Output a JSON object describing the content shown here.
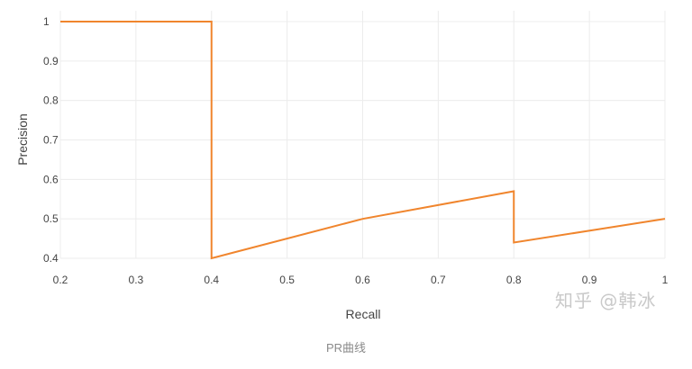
{
  "chart_data": {
    "type": "line",
    "title": "",
    "xlabel": "Recall",
    "ylabel": "Precision",
    "xlim": [
      0.2,
      1.0
    ],
    "ylim": [
      0.4,
      1.0
    ],
    "x_ticks": [
      0.2,
      0.3,
      0.4,
      0.5,
      0.6,
      0.7,
      0.8,
      0.9,
      1.0
    ],
    "x_tick_labels": [
      "0.2",
      "0.3",
      "0.4",
      "0.5",
      "0.6",
      "0.7",
      "0.8",
      "0.9",
      "1"
    ],
    "y_ticks": [
      0.4,
      0.5,
      0.6,
      0.7,
      0.8,
      0.9,
      1.0
    ],
    "y_tick_labels": [
      "0.4",
      "0.5",
      "0.6",
      "0.7",
      "0.8",
      "0.9",
      "1"
    ],
    "grid": true,
    "series": [
      {
        "name": "PR",
        "color": "#f0852d",
        "x": [
          0.2,
          0.4,
          0.4,
          0.6,
          0.8,
          0.8,
          1.0
        ],
        "y": [
          1.0,
          1.0,
          0.4,
          0.5,
          0.57,
          0.44,
          0.5
        ]
      }
    ]
  },
  "caption": "PR曲线",
  "watermark": "知乎 @韩冰"
}
